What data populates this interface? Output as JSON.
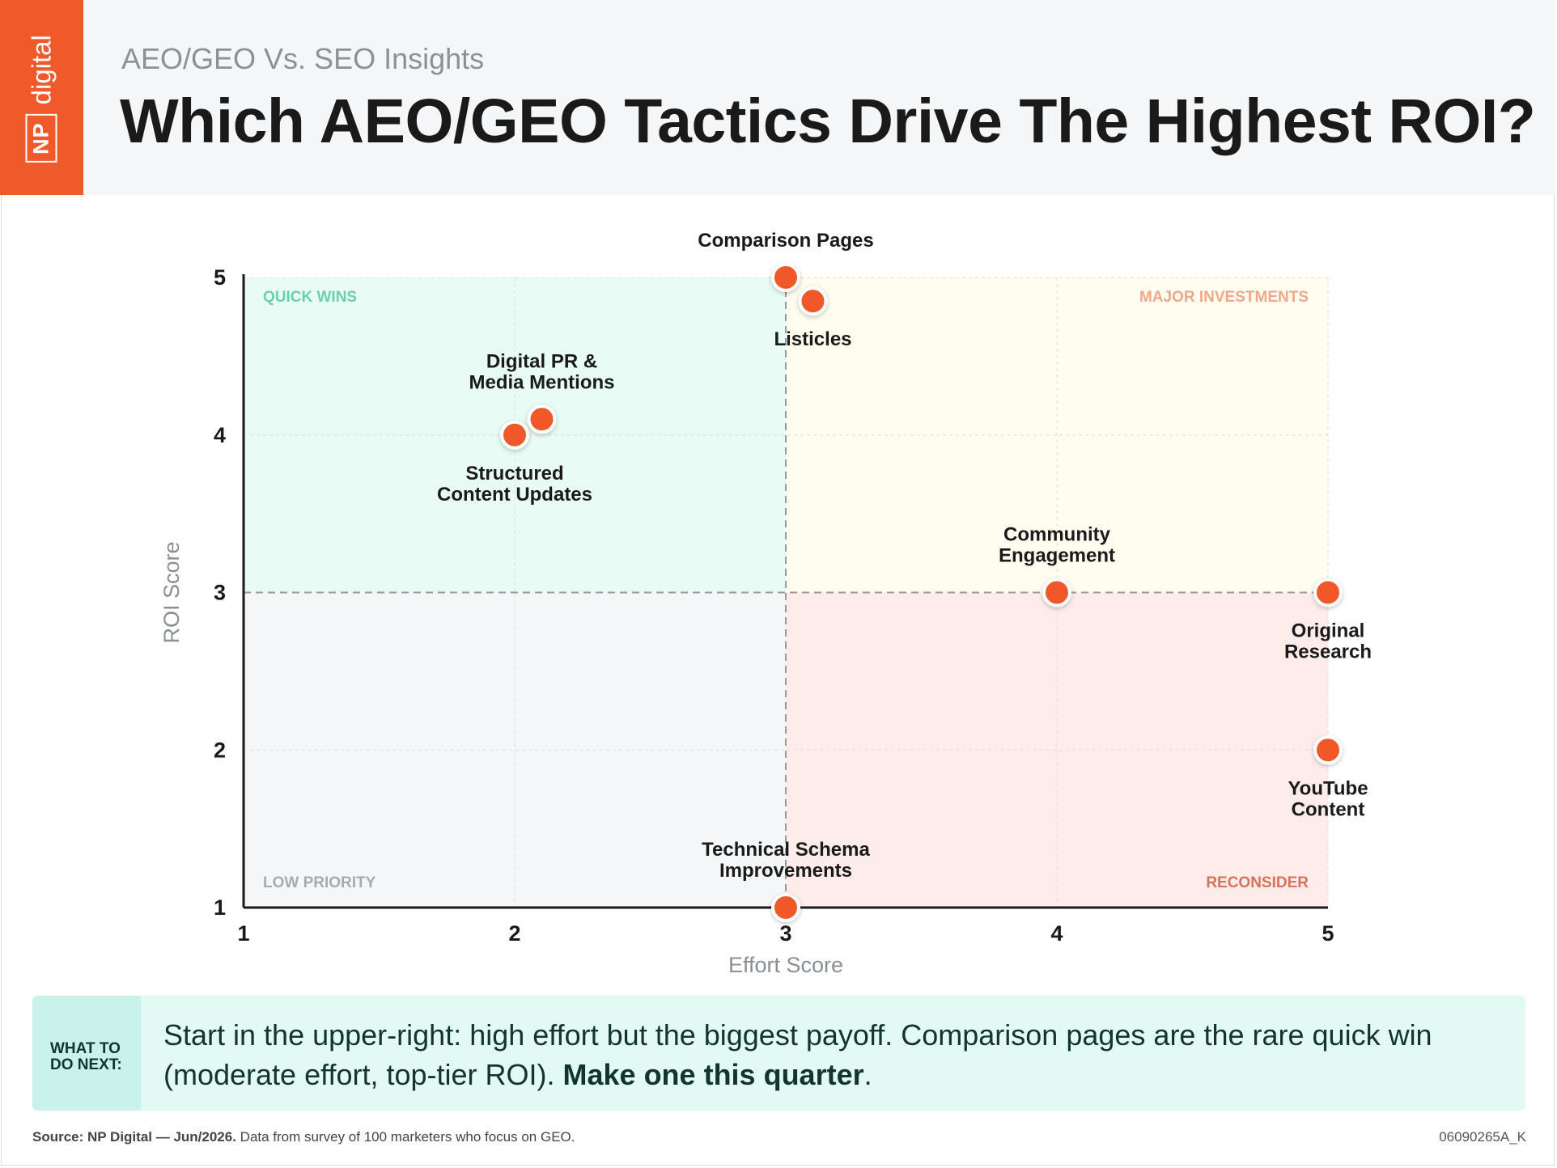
{
  "logo": {
    "np": "NP",
    "digital": "digital"
  },
  "header": {
    "subtitle": "AEO/GEO Vs. SEO Insights",
    "title": "Which AEO/GEO Tactics Drive The Highest ROI?"
  },
  "chart_data": {
    "type": "scatter",
    "xlabel": "Effort Score",
    "ylabel": "ROI Score",
    "xlim": [
      1,
      5
    ],
    "ylim": [
      1,
      5
    ],
    "xticks": [
      1,
      2,
      3,
      4,
      5
    ],
    "yticks": [
      1,
      2,
      3,
      4,
      5
    ],
    "grid": true,
    "dividers": {
      "x": 3,
      "y": 3
    },
    "quadrants": [
      {
        "label": "QUICK WINS",
        "position": "top-left",
        "fill": "#e8fbf4",
        "label_color": "#6ccfae"
      },
      {
        "label": "MAJOR INVESTMENTS",
        "position": "top-right",
        "fill": "#fffcf0",
        "label_color": "#f0a889"
      },
      {
        "label": "LOW PRIORITY",
        "position": "bottom-left",
        "fill": "#f5f6f7",
        "label_color": "#a7abb0"
      },
      {
        "label": "RECONSIDER",
        "position": "bottom-right",
        "fill": "#fdecea",
        "label_color": "#d9725b"
      }
    ],
    "point_color": "#f0592a",
    "points": [
      {
        "label": [
          "Comparison Pages"
        ],
        "x": 3.0,
        "y": 5.0,
        "label_pos": "above"
      },
      {
        "label": [
          "Listicles"
        ],
        "x": 3.1,
        "y": 4.85,
        "label_pos": "below"
      },
      {
        "label": [
          "Digital PR &",
          "Media Mentions"
        ],
        "x": 2.1,
        "y": 4.1,
        "label_pos": "above"
      },
      {
        "label": [
          "Structured",
          "Content Updates"
        ],
        "x": 2.0,
        "y": 4.0,
        "label_pos": "below"
      },
      {
        "label": [
          "Community",
          "Engagement"
        ],
        "x": 4.0,
        "y": 3.0,
        "label_pos": "above"
      },
      {
        "label": [
          "Original",
          "Research"
        ],
        "x": 5.0,
        "y": 3.0,
        "label_pos": "below"
      },
      {
        "label": [
          "YouTube",
          "Content"
        ],
        "x": 5.0,
        "y": 2.0,
        "label_pos": "below"
      },
      {
        "label": [
          "Technical Schema",
          "Improvements"
        ],
        "x": 3.0,
        "y": 1.0,
        "label_pos": "above"
      }
    ]
  },
  "callout": {
    "label": "WHAT TO DO NEXT:",
    "text": "Start in the upper-right: high effort but the biggest payoff. Comparison pages are the rare quick win (moderate effort, top-tier ROI). ",
    "emphasis": "Make one this quarter",
    "end": "."
  },
  "footer": {
    "source_strong": "Source: NP Digital — Jun/2026.",
    "source_text": " Data from survey of 100 marketers who focus on GEO.",
    "code": "06090265A_K"
  }
}
